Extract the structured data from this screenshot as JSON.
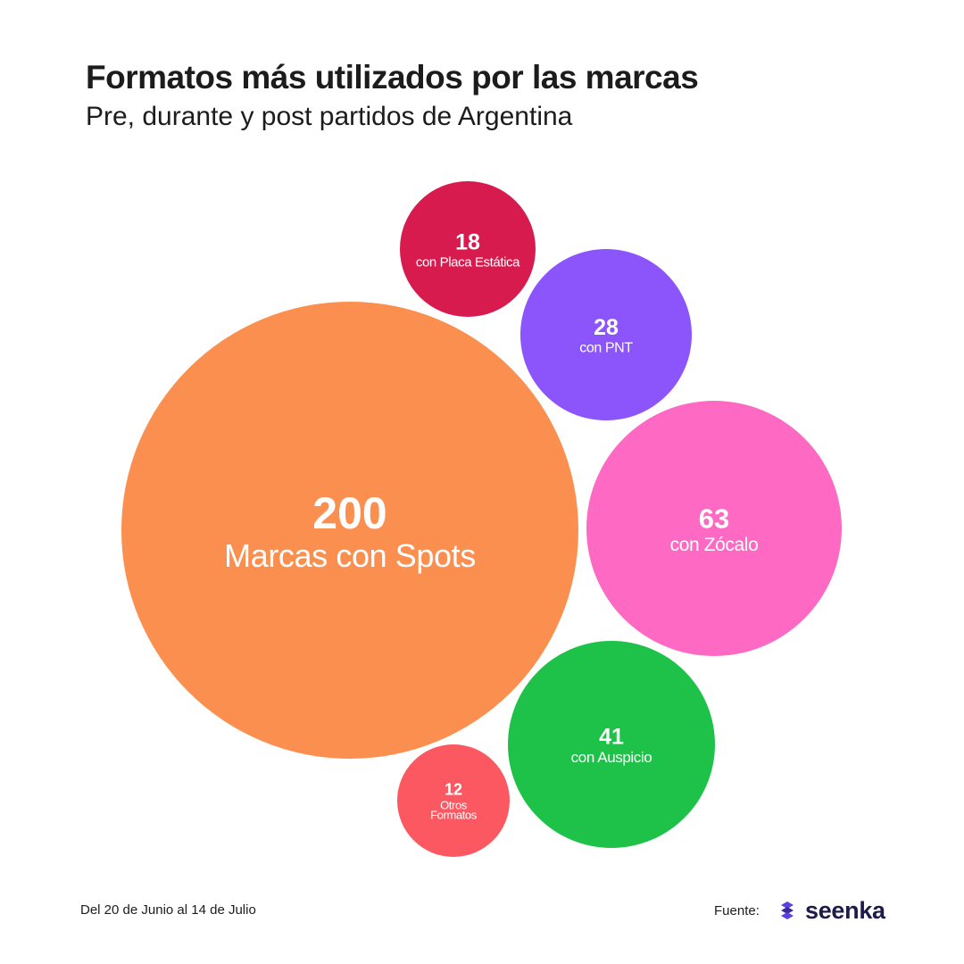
{
  "header": {
    "title": "Formatos más utilizados por las marcas",
    "subtitle": "Pre, durante y post partidos de Argentina"
  },
  "chart_data": {
    "type": "bubble",
    "title": "Formatos más utilizados por las marcas",
    "subtitle": "Pre, durante y post partidos de Argentina",
    "items": [
      {
        "id": "spots",
        "value": 200,
        "label": "Marcas con Spots",
        "color": "#fb8f4f"
      },
      {
        "id": "placa",
        "value": 18,
        "label": "con Placa Estática",
        "color": "#d81b4f"
      },
      {
        "id": "pnt",
        "value": 28,
        "label": "con PNT",
        "color": "#8b55fb"
      },
      {
        "id": "zocalo",
        "value": 63,
        "label": "con Zócalo",
        "color": "#fd69c3"
      },
      {
        "id": "auspicio",
        "value": 41,
        "label": "con Auspicio",
        "color": "#1ec249"
      },
      {
        "id": "otros",
        "value": 12,
        "label": "Otros Formatos",
        "color": "#fb5861"
      }
    ]
  },
  "footer": {
    "date_range": "Del 20 de Junio al 14 de Julio",
    "source_label": "Fuente:",
    "logo_text": "seenka",
    "logo_icon": "seenka-logo-icon",
    "logo_color": "#5b3fe0"
  }
}
